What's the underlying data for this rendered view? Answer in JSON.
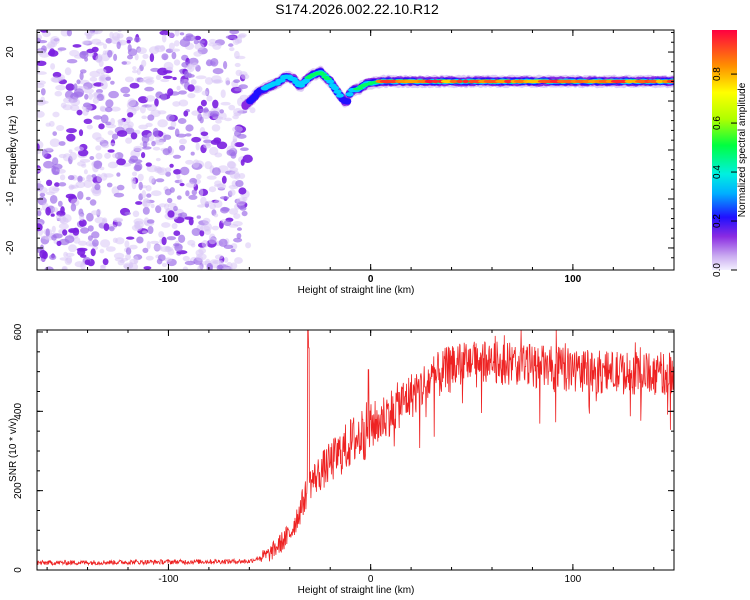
{
  "title": "S174.2026.002.22.10.R12",
  "colors": {
    "snr_line": "#ee2222",
    "scatter": "#8a2be2",
    "axis": "#000000"
  },
  "chart_data": [
    {
      "type": "heatmap",
      "name": "spectrogram",
      "xlabel": "Height of straight line (km)",
      "ylabel": "Frequency (Hz)",
      "xlim": [
        -165,
        150
      ],
      "ylim": [
        -24.5,
        24.5
      ],
      "xticks": [
        -100,
        0,
        100
      ],
      "yticks": [
        -20,
        -10,
        0,
        10,
        20
      ],
      "colorbar": {
        "label": "Normalized spectral amplitude",
        "ticks": [
          0.0,
          0.2,
          0.4,
          0.6,
          0.8
        ],
        "range": [
          0,
          0.98
        ]
      },
      "noise_region_x": [
        -165,
        -62
      ],
      "noise_region_y": [
        -24.5,
        24.5
      ],
      "signal_ridge": {
        "x": [
          -62,
          -55,
          -50,
          -45,
          -42,
          -38,
          -35,
          -30,
          -25,
          -20,
          -15,
          -12,
          -10,
          -6,
          -2,
          5,
          20,
          40,
          60,
          80,
          100,
          120,
          150
        ],
        "freq_hz": [
          9,
          12,
          13,
          14,
          15,
          14.5,
          13,
          15,
          16,
          14,
          11,
          9.5,
          12,
          12.5,
          13.5,
          14,
          14,
          14,
          14,
          14,
          14,
          14,
          14
        ],
        "amplitude": [
          0.2,
          0.35,
          0.5,
          0.55,
          0.45,
          0.4,
          0.45,
          0.6,
          0.7,
          0.55,
          0.4,
          0.35,
          0.45,
          0.6,
          0.75,
          0.85,
          0.9,
          0.85,
          0.9,
          0.85,
          0.9,
          0.9,
          0.92
        ]
      }
    },
    {
      "type": "line",
      "name": "snr",
      "xlabel": "Height of straight line (km)",
      "ylabel": "SNR (10 * v/v)",
      "xlim": [
        -165,
        150
      ],
      "ylim": [
        0,
        605
      ],
      "xticks": [
        -100,
        0,
        100
      ],
      "yticks": [
        0,
        200,
        400,
        600
      ],
      "trend": {
        "x": [
          -165,
          -60,
          -50,
          -40,
          -35,
          -30,
          -20,
          -10,
          0,
          10,
          20,
          30,
          40,
          50,
          70,
          90,
          110,
          130,
          150
        ],
        "y": [
          18,
          22,
          40,
          90,
          150,
          220,
          270,
          320,
          360,
          400,
          440,
          480,
          510,
          525,
          520,
          510,
          500,
          495,
          495
        ]
      },
      "spikes": [
        {
          "x": -31,
          "y": 605
        },
        {
          "x": -30.5,
          "y": 560
        },
        {
          "x": -1,
          "y": 505
        },
        {
          "x": -4,
          "y": 380
        }
      ]
    }
  ]
}
